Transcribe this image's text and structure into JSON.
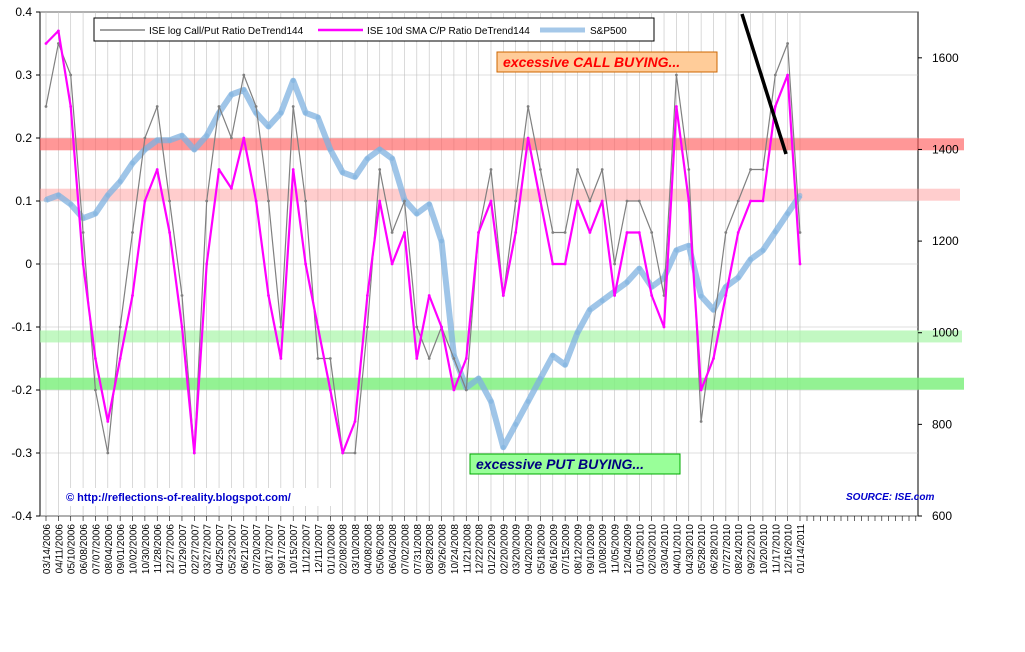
{
  "chart_data": {
    "type": "line",
    "title": "",
    "xlabel": "",
    "ylabel": "",
    "ylim_left": [
      -0.4,
      0.4
    ],
    "ylim_right": [
      600,
      1700
    ],
    "yticks_left": [
      "0.4",
      "0.3",
      "0.2",
      "0.1",
      "0",
      "-0.1",
      "-0.2",
      "-0.3",
      "-0.4"
    ],
    "yticks_right": [
      "1600",
      "1400",
      "1200",
      "1000",
      "800",
      "600"
    ],
    "grid": true,
    "legend_position": "top-left",
    "categories": [
      "03/14/2006",
      "04/11/2006",
      "05/10/2006",
      "06/08/2006",
      "07/07/2006",
      "08/04/2006",
      "09/01/2006",
      "10/02/2006",
      "10/30/2006",
      "11/28/2006",
      "12/27/2006",
      "01/29/2007",
      "02/27/2007",
      "03/27/2007",
      "04/25/2007",
      "05/23/2007",
      "06/21/2007",
      "07/20/2007",
      "08/17/2007",
      "09/17/2007",
      "10/15/2007",
      "11/12/2007",
      "12/11/2007",
      "01/10/2008",
      "02/08/2008",
      "03/10/2008",
      "04/08/2008",
      "05/06/2008",
      "06/04/2008",
      "07/02/2008",
      "07/31/2008",
      "08/28/2008",
      "09/26/2008",
      "10/24/2008",
      "11/21/2008",
      "12/22/2008",
      "01/22/2009",
      "02/20/2009",
      "03/20/2009",
      "04/20/2009",
      "05/18/2009",
      "06/16/2009",
      "07/15/2009",
      "08/12/2009",
      "09/10/2009",
      "10/08/2009",
      "11/05/2009",
      "12/04/2009",
      "01/05/2010",
      "02/03/2010",
      "03/04/2010",
      "04/01/2010",
      "04/30/2010",
      "05/28/2010",
      "06/28/2010",
      "07/27/2010",
      "08/24/2010",
      "09/22/2010",
      "10/20/2010",
      "11/17/2010",
      "12/16/2010",
      "01/14/2011"
    ],
    "series": [
      {
        "name": "ISE log Call/Put Ratio DeTrend144",
        "axis": "left",
        "color": "#808080",
        "values": [
          0.25,
          0.35,
          0.3,
          0.05,
          -0.2,
          -0.3,
          -0.1,
          0.05,
          0.2,
          0.25,
          0.1,
          -0.05,
          -0.3,
          0.1,
          0.25,
          0.2,
          0.3,
          0.25,
          0.1,
          -0.1,
          0.25,
          0.1,
          -0.15,
          -0.15,
          -0.3,
          -0.3,
          -0.1,
          0.15,
          0.05,
          0.1,
          -0.1,
          -0.15,
          -0.1,
          -0.15,
          -0.2,
          0.05,
          0.15,
          -0.05,
          0.1,
          0.25,
          0.15,
          0.05,
          0.05,
          0.15,
          0.1,
          0.15,
          0.0,
          0.1,
          0.1,
          0.05,
          -0.05,
          0.3,
          0.15,
          -0.25,
          -0.1,
          0.05,
          0.1,
          0.15,
          0.15,
          0.3,
          0.35,
          0.05
        ]
      },
      {
        "name": "ISE 10d SMA C/P Ratio DeTrend144",
        "axis": "left",
        "color": "#ff00ff",
        "values": [
          0.35,
          0.37,
          0.25,
          0.0,
          -0.15,
          -0.25,
          -0.15,
          -0.05,
          0.1,
          0.15,
          0.05,
          -0.1,
          -0.3,
          0.0,
          0.15,
          0.12,
          0.2,
          0.1,
          -0.05,
          -0.15,
          0.15,
          0.0,
          -0.1,
          -0.2,
          -0.3,
          -0.25,
          -0.05,
          0.1,
          0.0,
          0.05,
          -0.15,
          -0.05,
          -0.1,
          -0.2,
          -0.15,
          0.05,
          0.1,
          -0.05,
          0.05,
          0.2,
          0.1,
          0.0,
          0.0,
          0.1,
          0.05,
          0.1,
          -0.05,
          0.05,
          0.05,
          -0.05,
          -0.1,
          0.25,
          0.1,
          -0.2,
          -0.15,
          -0.05,
          0.05,
          0.1,
          0.1,
          0.25,
          0.3,
          0.0
        ]
      },
      {
        "name": "S&P500",
        "axis": "right",
        "color": "#7fb2e0",
        "values": [
          1290,
          1300,
          1280,
          1250,
          1260,
          1300,
          1330,
          1370,
          1400,
          1420,
          1420,
          1430,
          1400,
          1430,
          1480,
          1520,
          1530,
          1480,
          1450,
          1480,
          1550,
          1480,
          1470,
          1400,
          1350,
          1340,
          1380,
          1400,
          1380,
          1290,
          1260,
          1280,
          1200,
          950,
          880,
          900,
          850,
          750,
          800,
          850,
          900,
          950,
          930,
          1000,
          1050,
          1070,
          1090,
          1110,
          1140,
          1100,
          1120,
          1180,
          1190,
          1080,
          1050,
          1100,
          1120,
          1160,
          1180,
          1220,
          1260,
          1300
        ]
      }
    ],
    "annotations": {
      "call_buying": "excessive CALL BUYING...",
      "put_buying": "excessive PUT BUYING...",
      "credit": "© http://reflections-of-reality.blogspot.com/",
      "source": "SOURCE: ISE.com"
    },
    "bands": [
      {
        "value": 0.19,
        "color": "#ff6060",
        "opacity": 0.65
      },
      {
        "value": 0.11,
        "color": "#ff9090",
        "opacity": 0.45
      },
      {
        "value": -0.115,
        "color": "#a8f5a8",
        "opacity": 0.7
      },
      {
        "value": -0.19,
        "color": "#80f080",
        "opacity": 0.85
      }
    ]
  }
}
